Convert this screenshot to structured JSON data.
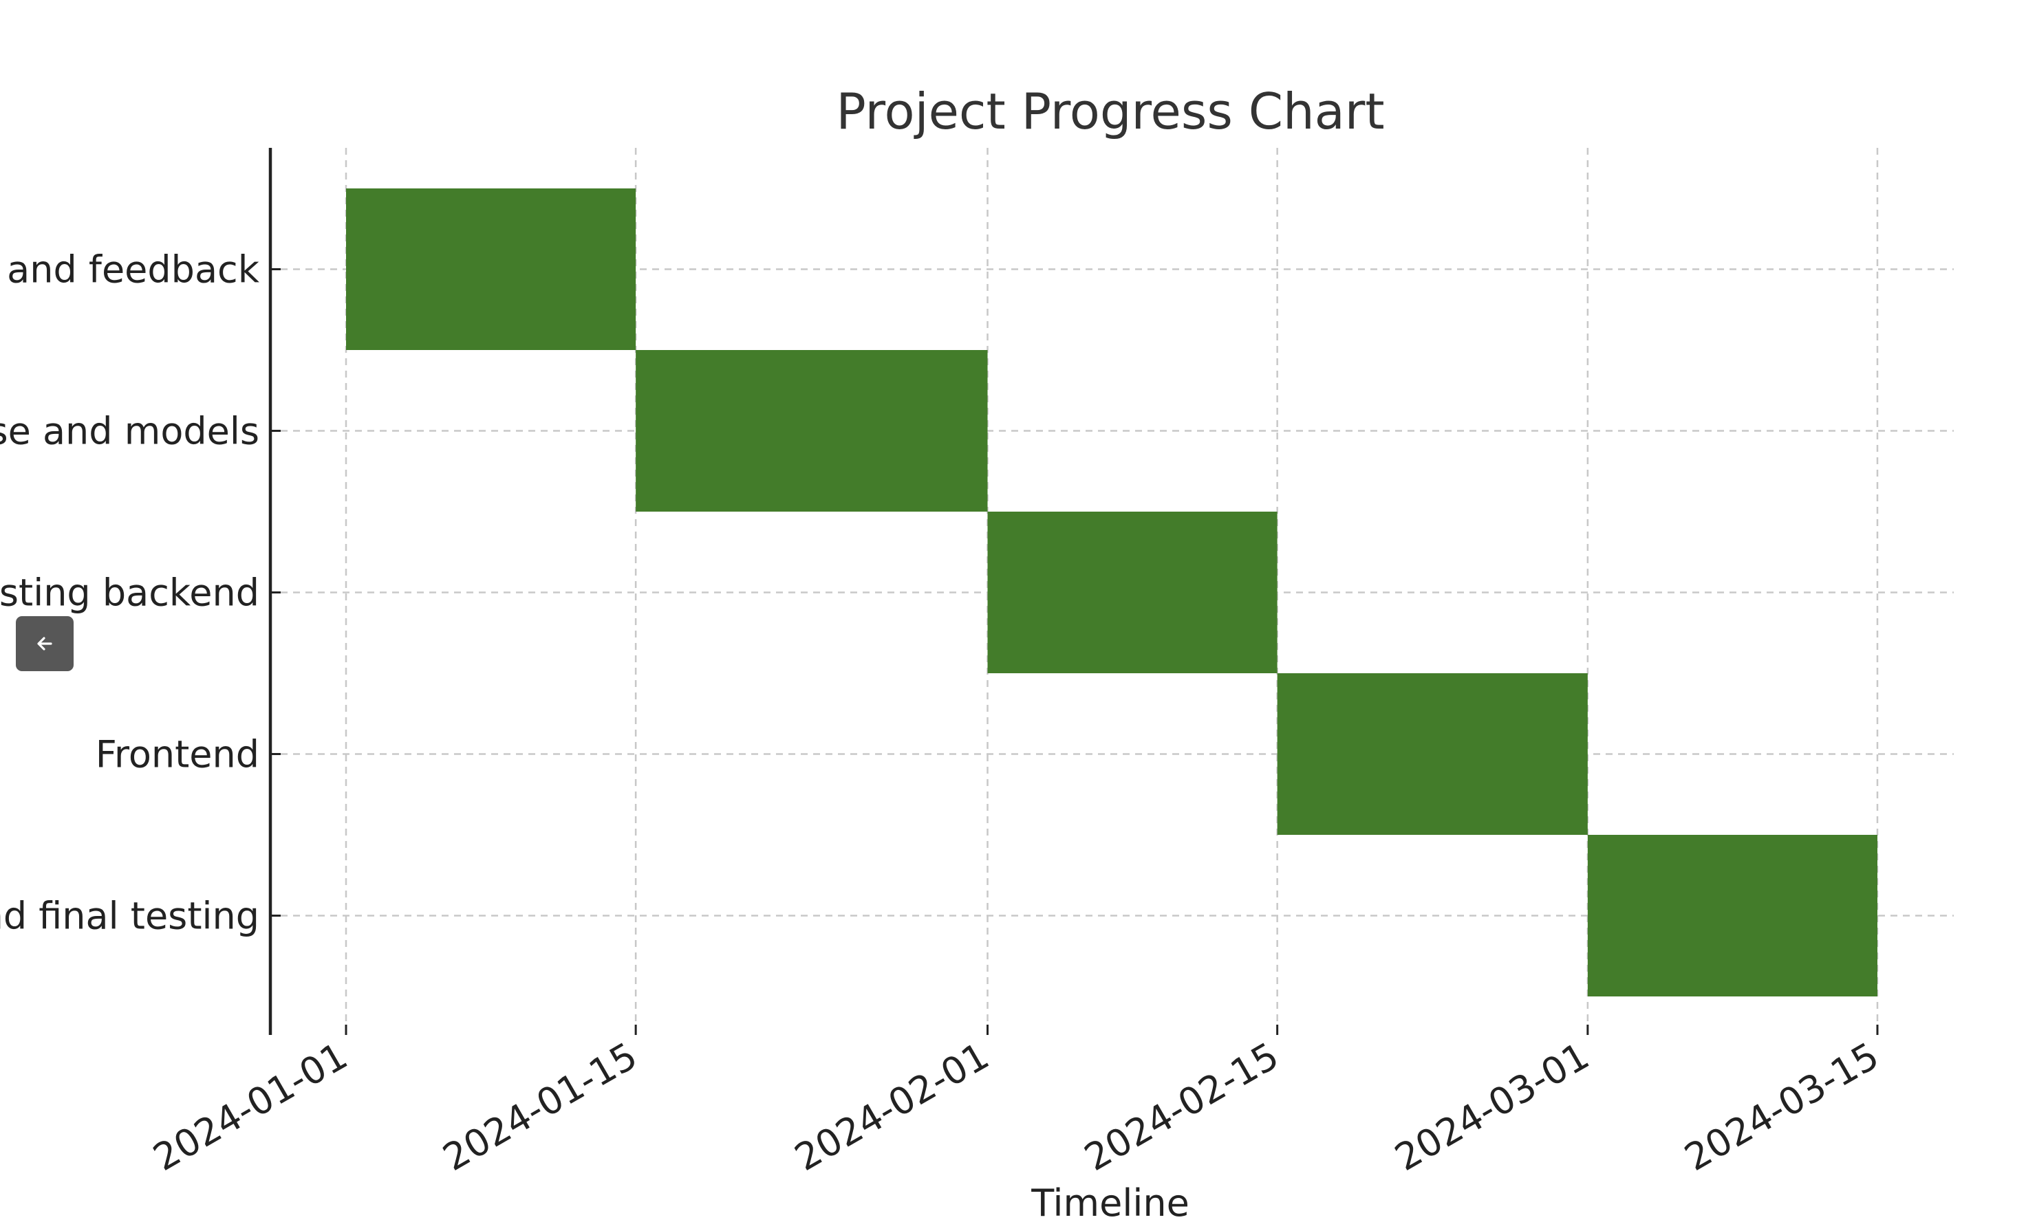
{
  "chart_data": {
    "type": "gantt",
    "title": "Project Progress Chart",
    "xlabel": "Timeline",
    "ylabel": "",
    "bar_color": "#437c2a",
    "grid": true,
    "x_ticks": [
      "2024-01-01",
      "2024-01-15",
      "2024-02-01",
      "2024-02-15",
      "2024-03-01",
      "2024-03-15"
    ],
    "tasks": [
      {
        "label": "Requirements and feedback",
        "display_label": "s and feedback",
        "start": "2024-01-01",
        "end": "2024-01-15"
      },
      {
        "label": "Database and models",
        "display_label": "se and models",
        "start": "2024-01-15",
        "end": "2024-02-01"
      },
      {
        "label": "Testing backend",
        "display_label": "esting backend",
        "start": "2024-02-01",
        "end": "2024-02-15"
      },
      {
        "label": "Frontend",
        "display_label": "Frontend",
        "start": "2024-02-15",
        "end": "2024-03-01"
      },
      {
        "label": "Deployment and final testing",
        "display_label": "nd final testing",
        "start": "2024-03-01",
        "end": "2024-03-15"
      }
    ]
  },
  "controls": {
    "collapse_button_icon": "arrow-left-icon"
  }
}
